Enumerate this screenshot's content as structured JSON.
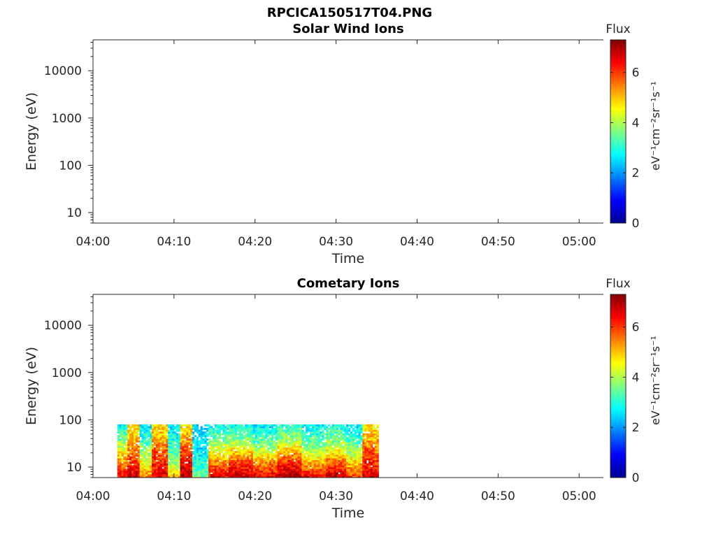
{
  "figure": {
    "title": "RPCICA150517T04.PNG"
  },
  "colorbar": {
    "label": "Flux",
    "unit_label": "eV⁻¹cm⁻²sr⁻¹s⁻¹",
    "range": [
      0,
      7.3
    ],
    "ticks": [
      "0",
      "2",
      "4",
      "6"
    ],
    "colormap": [
      "#00008f",
      "#0000ff",
      "#0080ff",
      "#00ffff",
      "#80ff80",
      "#ffff00",
      "#ff8000",
      "#ff0000",
      "#800000"
    ]
  },
  "chart_data": [
    {
      "type": "heatmap",
      "title": "Solar Wind Ions",
      "xlabel": "Time",
      "ylabel": "Energy (eV)",
      "y_scale": "log",
      "ylim": [
        6,
        45000
      ],
      "xlim": [
        "04:00",
        "05:03"
      ],
      "x_ticks": [
        "04:00",
        "04:10",
        "04:20",
        "04:30",
        "04:40",
        "04:50",
        "05:00"
      ],
      "y_ticks": [
        "10",
        "100",
        "1000",
        "10000"
      ],
      "data": []
    },
    {
      "type": "heatmap",
      "title": "Cometary Ions",
      "xlabel": "Time",
      "ylabel": "Energy (eV)",
      "y_scale": "log",
      "ylim": [
        6,
        45000
      ],
      "xlim": [
        "04:00",
        "05:03"
      ],
      "x_ticks": [
        "04:00",
        "04:10",
        "04:20",
        "04:30",
        "04:40",
        "04:50",
        "05:00"
      ],
      "y_ticks": [
        "10",
        "100",
        "1000",
        "10000"
      ],
      "data_time_range": [
        "04:03",
        "04:35"
      ],
      "energy_range_eV": [
        6,
        80
      ],
      "data": [
        {
          "t": "04:03",
          "flux_profile": [
            6.5,
            5.5,
            4.5,
            3.5,
            2.8
          ]
        },
        {
          "t": "04:05",
          "flux_profile": [
            6.8,
            6.0,
            5.5,
            5.0,
            4.8
          ]
        },
        {
          "t": "04:06",
          "flux_profile": [
            5.5,
            4.5,
            3.8,
            3.0,
            2.6
          ]
        },
        {
          "t": "04:08",
          "flux_profile": [
            6.5,
            6.2,
            5.8,
            5.0,
            4.8
          ]
        },
        {
          "t": "04:10",
          "flux_profile": [
            5.0,
            4.0,
            3.2,
            2.8,
            2.5
          ]
        },
        {
          "t": "04:11",
          "flux_profile": [
            7.0,
            6.5,
            5.8,
            5.2,
            4.8
          ]
        },
        {
          "t": "04:13",
          "flux_profile": [
            3.5,
            3.0,
            2.6,
            2.4,
            2.2
          ]
        },
        {
          "t": "04:15",
          "flux_profile": [
            6.5,
            5.5,
            4.5,
            3.5,
            2.8
          ]
        },
        {
          "t": "04:18",
          "flux_profile": [
            6.8,
            6.0,
            4.8,
            3.6,
            2.8
          ]
        },
        {
          "t": "04:21",
          "flux_profile": [
            6.5,
            5.5,
            4.2,
            3.2,
            2.6
          ]
        },
        {
          "t": "04:24",
          "flux_profile": [
            7.0,
            6.2,
            5.0,
            3.8,
            3.0
          ]
        },
        {
          "t": "04:27",
          "flux_profile": [
            6.5,
            5.2,
            4.0,
            3.2,
            2.6
          ]
        },
        {
          "t": "04:30",
          "flux_profile": [
            6.8,
            5.8,
            4.6,
            3.6,
            2.8
          ]
        },
        {
          "t": "04:32",
          "flux_profile": [
            6.0,
            5.0,
            4.0,
            3.0,
            2.6
          ]
        },
        {
          "t": "04:34",
          "flux_profile": [
            6.8,
            6.2,
            5.8,
            5.0,
            4.8
          ]
        },
        {
          "t": "04:35",
          "flux_profile": [
            6.5,
            6.0,
            5.5,
            5.0,
            4.8
          ]
        }
      ]
    }
  ]
}
